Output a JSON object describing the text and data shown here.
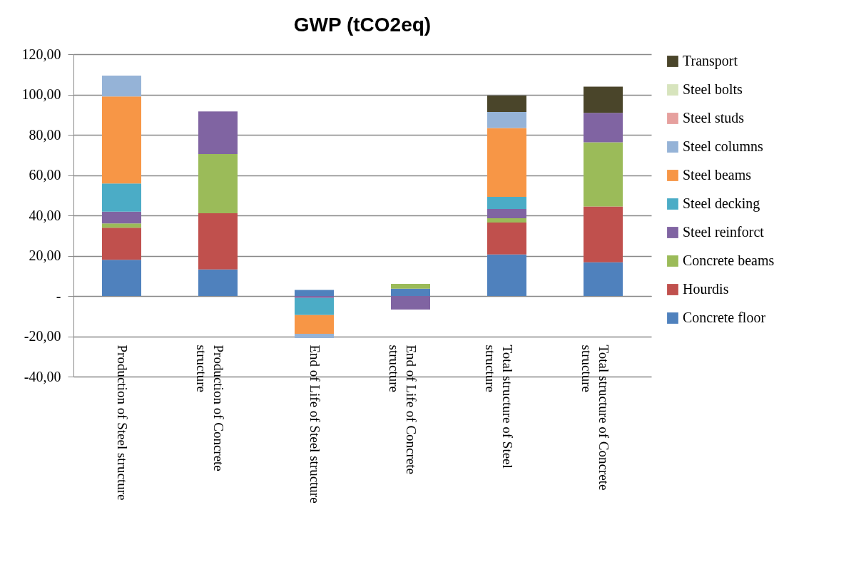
{
  "chart_data": {
    "type": "bar",
    "title": "GWP (tCO2eq)",
    "stacked": true,
    "categories": [
      "Production of Steel structure",
      "Production of Concrete structure",
      "End of Life of Steel structure",
      "End of Life of Concrete structure",
      "Total structure of Steel structure",
      "Total structure of Concrete structure"
    ],
    "series": [
      {
        "name": "Concrete floor",
        "color": "#4f81bd",
        "values": [
          18.0,
          13.2,
          3.0,
          3.6,
          20.6,
          16.7
        ]
      },
      {
        "name": "Hourdis",
        "color": "#c0504d",
        "values": [
          15.9,
          27.9,
          null,
          null,
          15.9,
          27.7
        ]
      },
      {
        "name": "Concrete beams",
        "color": "#9bbb59",
        "values": [
          2.1,
          29.3,
          null,
          2.4,
          2.1,
          31.9
        ]
      },
      {
        "name": "Steel reinforct",
        "color": "#8064a2",
        "values": [
          5.9,
          21.2,
          -1.0,
          -6.7,
          4.6,
          14.6
        ]
      },
      {
        "name": "Steel decking",
        "color": "#4bacc6",
        "values": [
          13.9,
          null,
          -8.5,
          null,
          6.0,
          null
        ]
      },
      {
        "name": "Steel beams",
        "color": "#f79646",
        "values": [
          43.2,
          null,
          -9.3,
          null,
          34.2,
          null
        ]
      },
      {
        "name": "Steel columns",
        "color": "#95b3d7",
        "values": [
          10.4,
          null,
          -2.1,
          null,
          7.9,
          null
        ]
      },
      {
        "name": "Steel studs",
        "color": "#e6a09e",
        "values": [
          null,
          null,
          null,
          null,
          null,
          null
        ]
      },
      {
        "name": "Steel bolts",
        "color": "#d7e4bd",
        "values": [
          null,
          null,
          null,
          null,
          null,
          null
        ]
      },
      {
        "name": "Transport",
        "color": "#4a452a",
        "values": [
          null,
          null,
          null,
          null,
          8.2,
          13.0
        ]
      }
    ],
    "ylim": [
      -40,
      120
    ],
    "yticks": [
      {
        "value": -40,
        "label": "-40,00"
      },
      {
        "value": -20,
        "label": "-20,00"
      },
      {
        "value": 0,
        "label": "-"
      },
      {
        "value": 20,
        "label": "20,00"
      },
      {
        "value": 40,
        "label": "40,00"
      },
      {
        "value": 60,
        "label": "60,00"
      },
      {
        "value": 80,
        "label": "80,00"
      },
      {
        "value": 100,
        "label": "100,00"
      },
      {
        "value": 120,
        "label": "120,00"
      }
    ],
    "grid": "y",
    "legend": "right"
  }
}
